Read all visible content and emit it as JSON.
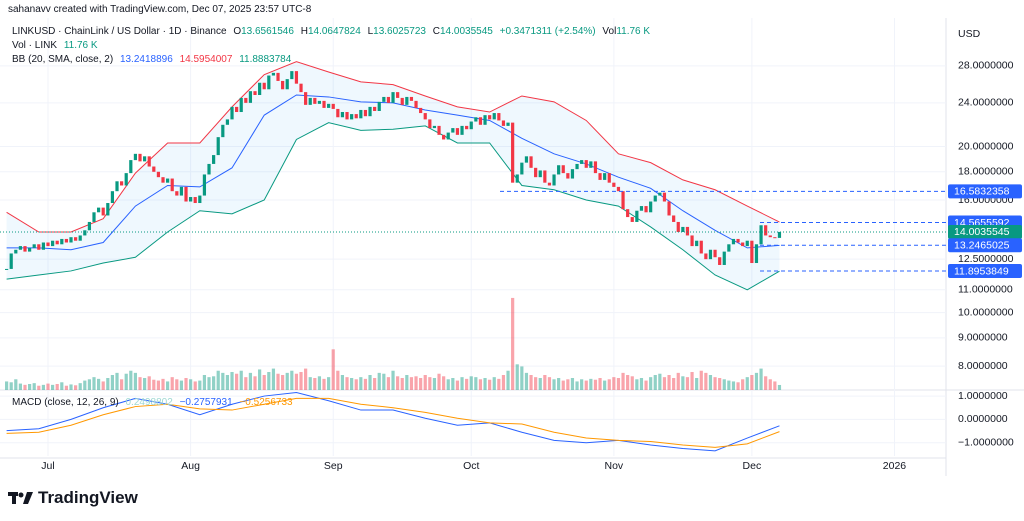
{
  "header": {
    "credit": "sahanavv created with TradingView.com, Dec 07, 2025 23:57 UTC-8"
  },
  "chart_data": {
    "type": "candlestick",
    "legend": {
      "symbol": "LINKUSD · ChainLink / US Dollar · 1D · Binance",
      "ohlc": [
        {
          "label": "O",
          "value": 13.6561546
        },
        {
          "label": "H",
          "value": 14.0647824
        },
        {
          "label": "L",
          "value": 13.6025723
        },
        {
          "label": "C",
          "value": 14.0035545
        }
      ],
      "change": "+0.3471311 (+2.54%)",
      "vol_label": "Vol",
      "vol_value": "11.76 K",
      "vol_title": "Vol · LINK",
      "bb_title": "BB (20, SMA, close, 2)",
      "bb_values": [
        13.2418896,
        14.5954007,
        11.8883784
      ],
      "macd_title": "MACD (close, 12, 26, 9)",
      "macd_values": [
        "0.2498802",
        "−0.2757931",
        "−0.5256733"
      ]
    },
    "y_unit": "USD",
    "close": [
      12.0,
      12.8,
      13.0,
      13.2,
      12.9,
      13.1,
      13.3,
      13.0,
      13.4,
      13.2,
      13.5,
      13.3,
      13.6,
      13.4,
      13.7,
      13.5,
      13.8,
      14.1,
      14.6,
      15.2,
      15.5,
      15.0,
      15.8,
      16.6,
      17.3,
      17.0,
      17.9,
      18.9,
      19.4,
      18.8,
      19.2,
      18.4,
      18.0,
      17.6,
      17.2,
      17.5,
      16.6,
      16.3,
      16.9,
      15.9,
      16.2,
      15.8,
      16.3,
      17.8,
      18.6,
      19.3,
      20.8,
      21.9,
      22.4,
      23.6,
      23.1,
      24.5,
      24.0,
      25.2,
      24.8,
      26.1,
      25.4,
      26.9,
      27.2,
      26.3,
      25.4,
      26.5,
      27.4,
      26.0,
      25.1,
      23.8,
      24.5,
      23.9,
      24.2,
      23.5,
      23.9,
      23.4,
      22.6,
      23.1,
      22.4,
      22.9,
      22.5,
      23.3,
      22.7,
      23.6,
      23.2,
      24.1,
      24.6,
      24.0,
      25.1,
      24.5,
      23.8,
      24.6,
      24.2,
      23.5,
      23.0,
      22.4,
      21.6,
      21.8,
      21.0,
      20.6,
      21.2,
      21.6,
      21.0,
      21.8,
      21.5,
      22.2,
      22.6,
      21.9,
      22.8,
      22.4,
      23.0,
      22.3,
      21.8,
      22.1,
      17.2,
      17.8,
      18.7,
      19.2,
      18.3,
      17.6,
      18.1,
      17.2,
      17.0,
      17.8,
      18.5,
      17.9,
      17.5,
      18.2,
      18.6,
      18.9,
      18.3,
      18.8,
      17.9,
      17.4,
      17.9,
      17.2,
      16.9,
      16.6,
      15.4,
      14.9,
      14.6,
      15.3,
      15.6,
      15.2,
      15.9,
      16.3,
      16.5,
      15.9,
      15.0,
      14.6,
      14.0,
      14.3,
      13.8,
      13.2,
      13.5,
      12.8,
      12.5,
      13.0,
      12.6,
      12.2,
      12.9,
      13.3,
      13.6,
      13.4,
      13.2,
      13.5,
      12.3,
      13.3,
      14.4,
      13.8,
      13.7,
      13.66,
      14.0035545
    ],
    "volume": [
      20,
      18,
      25,
      15,
      12,
      14,
      16,
      10,
      12,
      15,
      12,
      14,
      18,
      10,
      13,
      11,
      16,
      22,
      25,
      30,
      26,
      20,
      28,
      35,
      40,
      25,
      38,
      45,
      40,
      30,
      28,
      32,
      24,
      22,
      26,
      20,
      30,
      25,
      22,
      28,
      25,
      20,
      22,
      35,
      30,
      32,
      45,
      40,
      35,
      42,
      38,
      45,
      30,
      40,
      32,
      48,
      35,
      42,
      50,
      38,
      35,
      40,
      45,
      38,
      42,
      50,
      30,
      28,
      32,
      26,
      30,
      95,
      45,
      35,
      30,
      28,
      25,
      30,
      26,
      35,
      28,
      40,
      38,
      30,
      45,
      32,
      28,
      35,
      30,
      32,
      28,
      35,
      30,
      28,
      38,
      32,
      25,
      28,
      22,
      30,
      26,
      32,
      30,
      25,
      28,
      24,
      30,
      26,
      35,
      45,
      215,
      60,
      55,
      40,
      35,
      30,
      28,
      35,
      30,
      25,
      28,
      22,
      25,
      28,
      20,
      25,
      22,
      26,
      24,
      28,
      22,
      25,
      30,
      28,
      40,
      35,
      32,
      25,
      28,
      22,
      30,
      35,
      38,
      30,
      35,
      28,
      40,
      32,
      30,
      42,
      28,
      45,
      40,
      35,
      30,
      28,
      25,
      22,
      20,
      18,
      25,
      30,
      35,
      40,
      50,
      32,
      25,
      20,
      11.76
    ],
    "volume_ylim": [
      0,
      467
    ],
    "colors": {
      "up": "#089981",
      "down": "#f23645"
    },
    "xlim": [
      -1.435,
      204.2
    ],
    "xticks": [
      {
        "value": 9,
        "label": "Jul"
      },
      {
        "value": 40,
        "label": "Aug"
      },
      {
        "value": 71,
        "label": "Sep"
      },
      {
        "value": 101,
        "label": "Oct"
      },
      {
        "value": 132,
        "label": "Nov"
      },
      {
        "value": 162,
        "label": "Dec"
      },
      {
        "value": 193,
        "label": "2026"
      }
    ],
    "ylim": [
      7.24,
      34.2
    ],
    "log_scale": true,
    "grid": true,
    "yticks": [
      {
        "value": 8,
        "label": "8.0000000"
      },
      {
        "value": 9,
        "label": "9.0000000"
      },
      {
        "value": 10,
        "label": "10.0000000"
      },
      {
        "value": 11,
        "label": "11.0000000"
      },
      {
        "value": 12.5,
        "label": "12.5000000"
      },
      {
        "value": 16,
        "label": "16.0000000"
      },
      {
        "value": 18,
        "label": "18.0000000"
      },
      {
        "value": 20,
        "label": "20.0000000"
      },
      {
        "value": 24,
        "label": "24.0000000"
      },
      {
        "value": 28,
        "label": "28.0000000"
      }
    ],
    "price_lines": [
      {
        "value": 16.5832358,
        "color": "#2962ff"
      },
      {
        "value": 14.5655592,
        "color": "#2962ff"
      },
      {
        "value": 14.0035545,
        "color": "#089981"
      },
      {
        "value": 13.2465025,
        "color": "#2962ff"
      },
      {
        "value": 11.8953849,
        "color": "#2962ff"
      }
    ],
    "bb": {
      "x": [
        0,
        7,
        14,
        21,
        28,
        35,
        42,
        49,
        56,
        63,
        70,
        77,
        84,
        91,
        98,
        105,
        112,
        119,
        126,
        133,
        140,
        147,
        154,
        161,
        168
      ],
      "upper": [
        15.2,
        14.0,
        14.0,
        14.8,
        17.9,
        20.3,
        20.3,
        23.6,
        27.0,
        28.5,
        27.3,
        26.2,
        25.9,
        24.7,
        23.6,
        23.1,
        24.7,
        24.1,
        22.3,
        19.4,
        18.7,
        17.4,
        16.7,
        15.6,
        14.5954007
      ],
      "middle": [
        13.1,
        13.1,
        13.0,
        13.4,
        15.6,
        17.0,
        16.9,
        18.3,
        22.8,
        24.8,
        24.6,
        24.1,
        24.0,
        23.3,
        22.8,
        22.3,
        20.7,
        19.4,
        18.6,
        17.6,
        16.8,
        15.3,
        14.1,
        13.1,
        13.2418896
      ],
      "lower": [
        11.5,
        11.7,
        11.9,
        12.3,
        12.6,
        14.0,
        15.3,
        15.1,
        16.0,
        20.6,
        22.1,
        21.4,
        21.5,
        21.8,
        20.3,
        20.3,
        17.0,
        16.7,
        16.0,
        15.6,
        14.3,
        13.0,
        11.7,
        11.0,
        11.8883784
      ],
      "colors": {
        "upper": "#f23645",
        "middle": "#2962ff",
        "lower": "#089981",
        "fill": "#2196f3"
      }
    },
    "macd": {
      "ylim": [
        -1.57,
        1.26
      ],
      "yticks": [
        {
          "value": 1,
          "label": "1.0000000"
        },
        {
          "value": 0,
          "label": "0.0000000"
        },
        {
          "value": -1,
          "label": "−1.0000000"
        }
      ],
      "x": [
        0,
        7,
        14,
        21,
        28,
        35,
        42,
        49,
        56,
        63,
        70,
        77,
        84,
        91,
        98,
        105,
        112,
        119,
        126,
        133,
        140,
        147,
        154,
        161,
        168
      ],
      "macd": [
        -0.48,
        -0.4,
        0.0,
        0.5,
        0.9,
        0.65,
        0.2,
        0.65,
        1.0,
        1.15,
        0.8,
        0.4,
        0.4,
        0.05,
        -0.25,
        -0.15,
        -0.55,
        -0.9,
        -1.0,
        -0.9,
        -1.1,
        -1.25,
        -1.35,
        -0.8,
        -0.2757931
      ],
      "signal": [
        -0.6,
        -0.55,
        -0.25,
        0.2,
        0.55,
        0.65,
        0.45,
        0.4,
        0.65,
        0.9,
        0.9,
        0.65,
        0.5,
        0.3,
        0.05,
        -0.15,
        -0.2,
        -0.55,
        -0.8,
        -0.9,
        -0.95,
        -1.1,
        -1.2,
        -1.05,
        -0.5256733
      ],
      "colors": {
        "macd": "#2962ff",
        "signal": "#ff9800"
      }
    }
  },
  "footer": {
    "brand": "TradingView"
  }
}
